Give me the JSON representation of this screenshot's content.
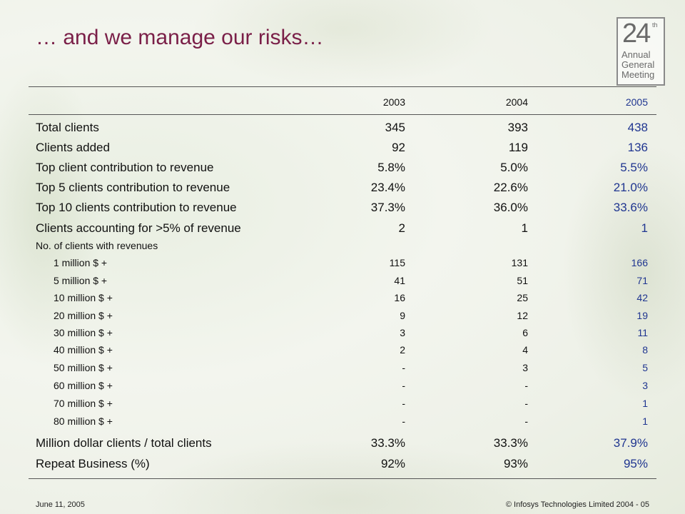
{
  "header": {
    "title": "… and we manage our risks…",
    "logo": {
      "number": "24",
      "suffix": "th",
      "lines": [
        "Annual",
        "General",
        "Meeting"
      ]
    }
  },
  "table": {
    "columns": [
      "2003",
      "2004",
      "2005"
    ],
    "rows": [
      {
        "label": "Total clients",
        "cells": [
          "345",
          "393",
          "438"
        ]
      },
      {
        "label": "Clients added",
        "cells": [
          "92",
          "119",
          "136"
        ]
      },
      {
        "label": "Top client contribution to revenue",
        "cells": [
          "5.8%",
          "5.0%",
          "5.5%"
        ]
      },
      {
        "label": "Top 5 clients contribution to revenue",
        "cells": [
          "23.4%",
          "22.6%",
          "21.0%"
        ]
      },
      {
        "label": "Top 10 clients contribution to revenue",
        "cells": [
          "37.3%",
          "36.0%",
          "33.6%"
        ]
      },
      {
        "label": "Clients accounting for >5% of revenue",
        "cells": [
          "2",
          "1",
          "1"
        ]
      },
      {
        "label": "No. of clients with revenues",
        "cells": []
      },
      {
        "label": "1 million $ +",
        "cells": [
          "115",
          "131",
          "166"
        ]
      },
      {
        "label": "5 million $ +",
        "cells": [
          "41",
          "51",
          "71"
        ]
      },
      {
        "label": "10 million $ +",
        "cells": [
          "16",
          "25",
          "42"
        ]
      },
      {
        "label": "20 million $ +",
        "cells": [
          "9",
          "12",
          "19"
        ]
      },
      {
        "label": "30 million $ +",
        "cells": [
          "3",
          "6",
          "11"
        ]
      },
      {
        "label": "40 million $ +",
        "cells": [
          "2",
          "4",
          "8"
        ]
      },
      {
        "label": "50 million $ +",
        "cells": [
          "-",
          "3",
          "5"
        ]
      },
      {
        "label": "60 million $ +",
        "cells": [
          "-",
          "-",
          "3"
        ]
      },
      {
        "label": "70 million $ +",
        "cells": [
          "-",
          "-",
          "1"
        ]
      },
      {
        "label": "80 million $ +",
        "cells": [
          "-",
          "-",
          "1"
        ]
      },
      {
        "label": "Million dollar clients / total clients",
        "cells": [
          "33.3%",
          "33.3%",
          "37.9%"
        ]
      },
      {
        "label": "Repeat Business (%)",
        "cells": [
          "92%",
          "93%",
          "95%"
        ]
      }
    ]
  },
  "footer": {
    "date": "June 11, 2005",
    "copyright": "© Infosys Technologies Limited 2004 - 05"
  }
}
